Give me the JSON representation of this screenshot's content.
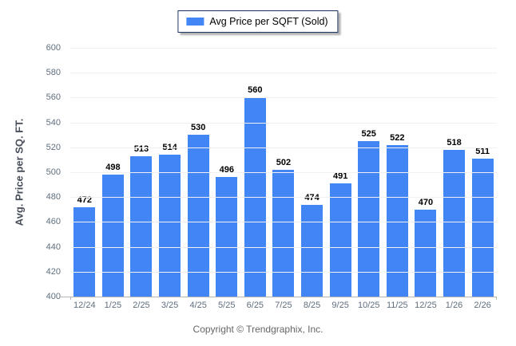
{
  "legend": {
    "label": "Avg Price per SQFT (Sold)",
    "swatch_color": "#4285f4"
  },
  "chart_data": {
    "type": "bar",
    "title": "",
    "series_name": "Avg Price per SQFT (Sold)",
    "categories": [
      "12/24",
      "1/25",
      "2/25",
      "3/25",
      "4/25",
      "5/25",
      "6/25",
      "7/25",
      "8/25",
      "9/25",
      "10/25",
      "11/25",
      "12/25",
      "1/26",
      "2/26"
    ],
    "values": [
      472,
      498,
      513,
      514,
      530,
      496,
      560,
      502,
      474,
      491,
      525,
      522,
      470,
      518,
      511
    ],
    "xlabel": "",
    "ylabel": "Avg. Price per SQ. FT.",
    "ylim": [
      400,
      600
    ],
    "ytick_step": 20,
    "grid": true,
    "legend_position": "top-center",
    "bar_color": "#4285f4",
    "value_labels": true
  },
  "footer": {
    "copyright": "Copyright © Trendgraphix, Inc."
  }
}
